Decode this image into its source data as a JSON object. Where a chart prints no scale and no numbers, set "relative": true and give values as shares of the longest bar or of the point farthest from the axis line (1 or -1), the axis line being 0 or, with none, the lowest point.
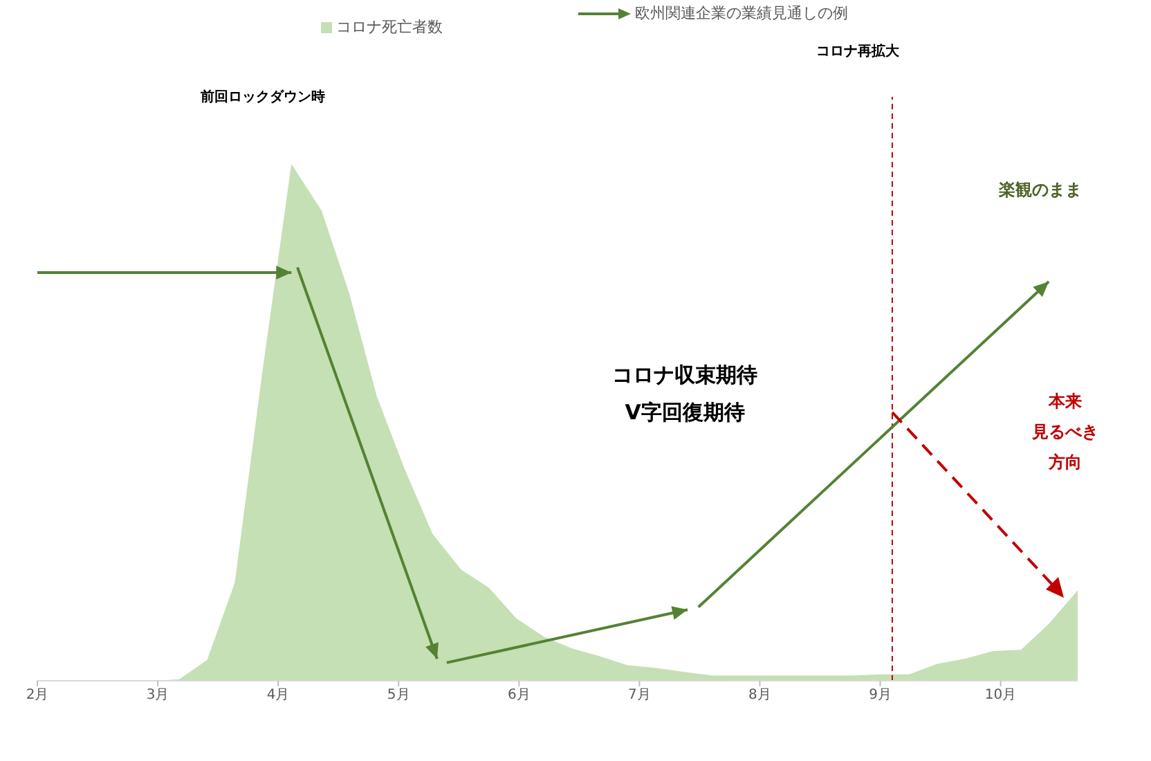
{
  "chart_data": {
    "type": "area",
    "relative": true,
    "legend": "top",
    "xlim": [
      2,
      10.64
    ],
    "xticks": [
      {
        "value": 2,
        "label": "2月"
      },
      {
        "value": 3,
        "label": "3月"
      },
      {
        "value": 4,
        "label": "4月"
      },
      {
        "value": 5,
        "label": "5月"
      },
      {
        "value": 6,
        "label": "6月"
      },
      {
        "value": 7,
        "label": "7月"
      },
      {
        "value": 8,
        "label": "8月"
      },
      {
        "value": 9,
        "label": "9月"
      },
      {
        "value": 10,
        "label": "10月"
      }
    ],
    "series": [
      {
        "name": "コロナ死亡者数",
        "color": "#c5e0b4",
        "x": [
          2,
          3,
          3.18,
          3.41,
          3.64,
          3.87,
          4.11,
          4.36,
          4.59,
          4.82,
          5.05,
          5.28,
          5.52,
          5.75,
          5.98,
          6.21,
          6.44,
          6.67,
          6.9,
          7.13,
          7.36,
          7.61,
          7.84,
          8.07,
          8.31,
          8.54,
          8.77,
          9.0,
          9.24,
          9.47,
          9.7,
          9.94,
          10.17,
          10.4,
          10.64
        ],
        "values": [
          0,
          0,
          0.003,
          0.04,
          0.19,
          0.6,
          1,
          0.91,
          0.75,
          0.55,
          0.41,
          0.285,
          0.215,
          0.18,
          0.12,
          0.085,
          0.0625,
          0.0475,
          0.03,
          0.025,
          0.0175,
          0.01,
          0.01,
          0.01,
          0.01,
          0.01,
          0.01,
          0.0125,
          0.0125,
          0.0325,
          0.0425,
          0.0575,
          0.06,
          0.11,
          0.175
        ]
      },
      {
        "name": "欧州関連企業の業績見通しの例",
        "type": "line",
        "color": "#548235",
        "x": [
          2,
          4.11,
          4.135,
          4.16,
          5.32,
          5.36,
          5.4,
          7.4,
          7.445,
          7.49,
          10.4
        ],
        "values": [
          0.79,
          0.79,
          null,
          0.8,
          0.0425,
          null,
          0.035,
          0.1375,
          null,
          0.1425,
          0.7725
        ]
      }
    ],
    "ref_lines": [
      {
        "axis": "x",
        "value": 9.1,
        "label": "コロナ再拡大",
        "color": "#c00000",
        "line_style": "dashed"
      }
    ],
    "annotations": [
      "前回ロックダウン時",
      "コロナ収束期待",
      "V字回復期待",
      "楽観のまま",
      "本来見るべき方向"
    ]
  }
}
